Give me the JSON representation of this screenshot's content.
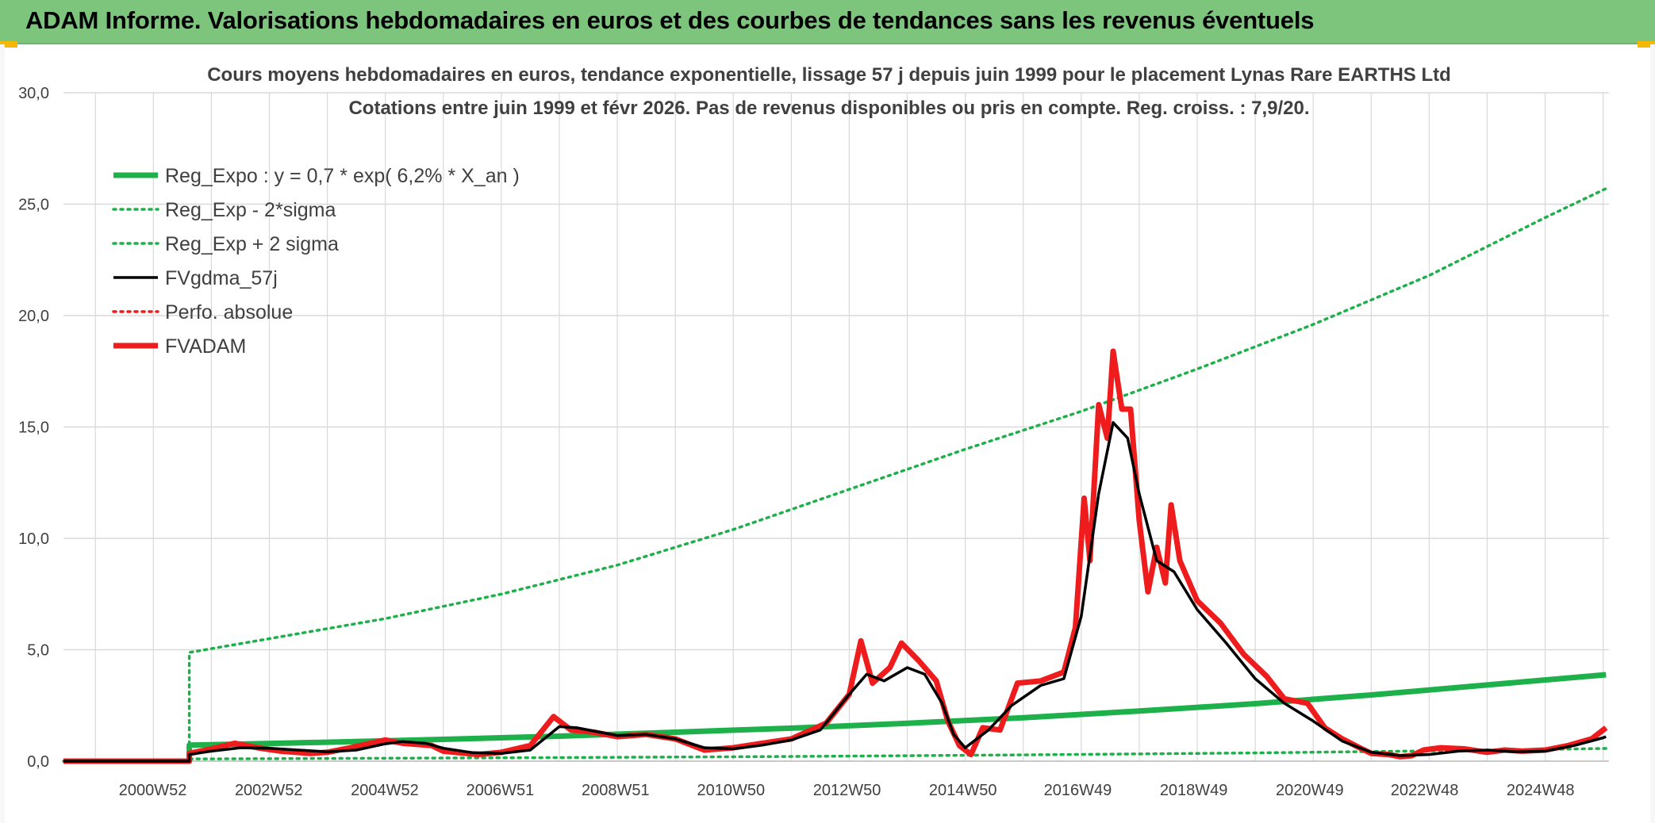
{
  "banner": {
    "title": "ADAM Informe. Valorisations hebdomadaires en euros et des courbes de tendances sans les revenus éventuels"
  },
  "colors": {
    "banner_bg": "#7dc57d",
    "trend_green": "#1eb04a",
    "smooth_black": "#000000",
    "price_red": "#ee1c1c",
    "grid": "#d9d9d9",
    "axis_text": "#404040"
  },
  "chart_data": {
    "type": "line",
    "title": "Cours moyens hebdomadaires en euros, tendance exponentielle, lissage 57 j depuis juin 1999 pour le placement Lynas Rare EARTHS Ltd",
    "subtitle": "Cotations entre juin 1999 et févr 2026. Pas de revenus disponibles ou pris en compte. Reg. croiss. : 7,9/20.",
    "xlabel": "",
    "ylabel": "",
    "x_range": [
      1999.45,
      2026.1
    ],
    "ylim": [
      0,
      30
    ],
    "y_ticks": [
      "0,0",
      "5,0",
      "10,0",
      "15,0",
      "20,0",
      "25,0",
      "30,0"
    ],
    "x_ticks": [
      {
        "x": 2000.99,
        "label": "2000W52"
      },
      {
        "x": 2002.99,
        "label": "2002W52"
      },
      {
        "x": 2004.99,
        "label": "2004W52"
      },
      {
        "x": 2006.98,
        "label": "2006W51"
      },
      {
        "x": 2008.97,
        "label": "2008W51"
      },
      {
        "x": 2010.96,
        "label": "2010W50"
      },
      {
        "x": 2012.96,
        "label": "2012W50"
      },
      {
        "x": 2014.96,
        "label": "2014W50"
      },
      {
        "x": 2016.94,
        "label": "2016W49"
      },
      {
        "x": 2018.94,
        "label": "2018W49"
      },
      {
        "x": 2020.94,
        "label": "2020W49"
      },
      {
        "x": 2022.92,
        "label": "2022W48"
      },
      {
        "x": 2024.92,
        "label": "2024W48"
      }
    ],
    "grid": true,
    "legend_position": "top-left",
    "series": [
      {
        "name": "Reg_Expo : y = 0,7 * exp( 6,2% *  X_an )",
        "style": "solid-thick",
        "color": "#1eb04a",
        "points": [
          [
            1999.45,
            0
          ],
          [
            2001.62,
            0
          ],
          [
            2001.62,
            0.72
          ],
          [
            2004,
            0.85
          ],
          [
            2006,
            0.98
          ],
          [
            2008,
            1.12
          ],
          [
            2010,
            1.3
          ],
          [
            2012,
            1.48
          ],
          [
            2014,
            1.7
          ],
          [
            2016,
            1.95
          ],
          [
            2018,
            2.25
          ],
          [
            2020,
            2.58
          ],
          [
            2022,
            2.97
          ],
          [
            2024,
            3.42
          ],
          [
            2026.05,
            3.88
          ]
        ]
      },
      {
        "name": "Reg_Exp - 2*sigma",
        "style": "dotted",
        "color": "#1eb04a",
        "points": [
          [
            1999.45,
            0
          ],
          [
            2001.62,
            0
          ],
          [
            2001.62,
            0.1
          ],
          [
            2004,
            0.12
          ],
          [
            2008,
            0.16
          ],
          [
            2012,
            0.21
          ],
          [
            2016,
            0.28
          ],
          [
            2020,
            0.37
          ],
          [
            2024,
            0.49
          ],
          [
            2026.05,
            0.57
          ]
        ]
      },
      {
        "name": "Reg_Exp + 2 sigma",
        "style": "dotted",
        "color": "#1eb04a",
        "points": [
          [
            1999.45,
            0
          ],
          [
            2001.62,
            0
          ],
          [
            2001.62,
            4.88
          ],
          [
            2003,
            5.5
          ],
          [
            2005,
            6.4
          ],
          [
            2007,
            7.5
          ],
          [
            2009,
            8.8
          ],
          [
            2011,
            10.4
          ],
          [
            2013,
            12.2
          ],
          [
            2015,
            14.0
          ],
          [
            2017,
            15.7
          ],
          [
            2019,
            17.6
          ],
          [
            2021,
            19.6
          ],
          [
            2023,
            21.8
          ],
          [
            2025,
            24.4
          ],
          [
            2026.05,
            25.7
          ]
        ]
      },
      {
        "name": "FVgdma_57j",
        "style": "solid",
        "color": "#000000",
        "points": [
          [
            1999.45,
            0
          ],
          [
            2001.62,
            0
          ],
          [
            2001.62,
            0.3
          ],
          [
            2002,
            0.45
          ],
          [
            2002.5,
            0.6
          ],
          [
            2003,
            0.58
          ],
          [
            2003.5,
            0.5
          ],
          [
            2004,
            0.42
          ],
          [
            2004.5,
            0.5
          ],
          [
            2005,
            0.78
          ],
          [
            2005.3,
            0.88
          ],
          [
            2005.7,
            0.8
          ],
          [
            2006,
            0.58
          ],
          [
            2006.5,
            0.38
          ],
          [
            2007,
            0.35
          ],
          [
            2007.5,
            0.5
          ],
          [
            2008,
            1.55
          ],
          [
            2008.3,
            1.5
          ],
          [
            2008.7,
            1.3
          ],
          [
            2009,
            1.15
          ],
          [
            2009.5,
            1.2
          ],
          [
            2010,
            1.0
          ],
          [
            2010.5,
            0.6
          ],
          [
            2011,
            0.55
          ],
          [
            2011.5,
            0.72
          ],
          [
            2012,
            0.95
          ],
          [
            2012.5,
            1.4
          ],
          [
            2013,
            3.0
          ],
          [
            2013.3,
            3.9
          ],
          [
            2013.6,
            3.6
          ],
          [
            2014,
            4.2
          ],
          [
            2014.3,
            3.9
          ],
          [
            2014.6,
            2.6
          ],
          [
            2014.8,
            1.2
          ],
          [
            2015,
            0.6
          ],
          [
            2015.4,
            1.4
          ],
          [
            2015.8,
            2.5
          ],
          [
            2016.3,
            3.4
          ],
          [
            2016.7,
            3.7
          ],
          [
            2017.0,
            6.5
          ],
          [
            2017.3,
            12.0
          ],
          [
            2017.55,
            15.2
          ],
          [
            2017.8,
            14.5
          ],
          [
            2018.0,
            12.0
          ],
          [
            2018.3,
            9.0
          ],
          [
            2018.6,
            8.5
          ],
          [
            2019,
            6.8
          ],
          [
            2019.5,
            5.3
          ],
          [
            2020,
            3.7
          ],
          [
            2020.5,
            2.6
          ],
          [
            2021,
            1.8
          ],
          [
            2021.5,
            0.9
          ],
          [
            2022,
            0.4
          ],
          [
            2022.5,
            0.25
          ],
          [
            2023,
            0.3
          ],
          [
            2023.5,
            0.45
          ],
          [
            2024,
            0.5
          ],
          [
            2024.5,
            0.42
          ],
          [
            2025,
            0.45
          ],
          [
            2025.5,
            0.7
          ],
          [
            2026,
            1.05
          ],
          [
            2026.05,
            1.1
          ]
        ]
      },
      {
        "name": "Perfo. absolue",
        "style": "dotted",
        "color": "#ee1c1c",
        "points": []
      },
      {
        "name": "FVADAM",
        "style": "solid-thick",
        "color": "#ee1c1c",
        "points": [
          [
            1999.45,
            0
          ],
          [
            2001.62,
            0
          ],
          [
            2001.62,
            0.35
          ],
          [
            2002,
            0.55
          ],
          [
            2002.4,
            0.8
          ],
          [
            2002.8,
            0.6
          ],
          [
            2003.2,
            0.45
          ],
          [
            2003.7,
            0.35
          ],
          [
            2004.0,
            0.4
          ],
          [
            2004.4,
            0.6
          ],
          [
            2005,
            0.95
          ],
          [
            2005.3,
            0.8
          ],
          [
            2005.8,
            0.7
          ],
          [
            2006,
            0.45
          ],
          [
            2006.6,
            0.3
          ],
          [
            2007,
            0.4
          ],
          [
            2007.5,
            0.7
          ],
          [
            2007.9,
            2.0
          ],
          [
            2008.2,
            1.4
          ],
          [
            2008.6,
            1.3
          ],
          [
            2009,
            1.1
          ],
          [
            2009.5,
            1.2
          ],
          [
            2010,
            1.0
          ],
          [
            2010.5,
            0.5
          ],
          [
            2011,
            0.6
          ],
          [
            2011.5,
            0.8
          ],
          [
            2012,
            1.0
          ],
          [
            2012.6,
            1.7
          ],
          [
            2013,
            3.0
          ],
          [
            2013.2,
            5.4
          ],
          [
            2013.4,
            3.5
          ],
          [
            2013.7,
            4.2
          ],
          [
            2013.9,
            5.3
          ],
          [
            2014.2,
            4.5
          ],
          [
            2014.5,
            3.6
          ],
          [
            2014.7,
            1.8
          ],
          [
            2014.9,
            0.7
          ],
          [
            2015.1,
            0.3
          ],
          [
            2015.3,
            1.5
          ],
          [
            2015.6,
            1.4
          ],
          [
            2015.9,
            3.5
          ],
          [
            2016.3,
            3.6
          ],
          [
            2016.7,
            4.0
          ],
          [
            2016.9,
            6.0
          ],
          [
            2017.05,
            11.8
          ],
          [
            2017.15,
            9.0
          ],
          [
            2017.3,
            16.0
          ],
          [
            2017.45,
            14.5
          ],
          [
            2017.55,
            18.4
          ],
          [
            2017.7,
            15.8
          ],
          [
            2017.85,
            15.8
          ],
          [
            2018.0,
            10.8
          ],
          [
            2018.15,
            7.6
          ],
          [
            2018.3,
            9.6
          ],
          [
            2018.45,
            8.0
          ],
          [
            2018.55,
            11.5
          ],
          [
            2018.7,
            9.0
          ],
          [
            2019,
            7.2
          ],
          [
            2019.4,
            6.2
          ],
          [
            2019.8,
            4.8
          ],
          [
            2020.2,
            3.8
          ],
          [
            2020.5,
            2.8
          ],
          [
            2020.9,
            2.6
          ],
          [
            2021.2,
            1.5
          ],
          [
            2021.5,
            1.0
          ],
          [
            2021.8,
            0.6
          ],
          [
            2022,
            0.35
          ],
          [
            2022.3,
            0.3
          ],
          [
            2022.5,
            0.2
          ],
          [
            2022.7,
            0.25
          ],
          [
            2022.9,
            0.5
          ],
          [
            2023.2,
            0.6
          ],
          [
            2023.6,
            0.55
          ],
          [
            2024,
            0.4
          ],
          [
            2024.3,
            0.5
          ],
          [
            2024.6,
            0.45
          ],
          [
            2025,
            0.5
          ],
          [
            2025.4,
            0.7
          ],
          [
            2025.8,
            1.0
          ],
          [
            2026,
            1.4
          ],
          [
            2026.05,
            1.5
          ]
        ]
      }
    ]
  }
}
